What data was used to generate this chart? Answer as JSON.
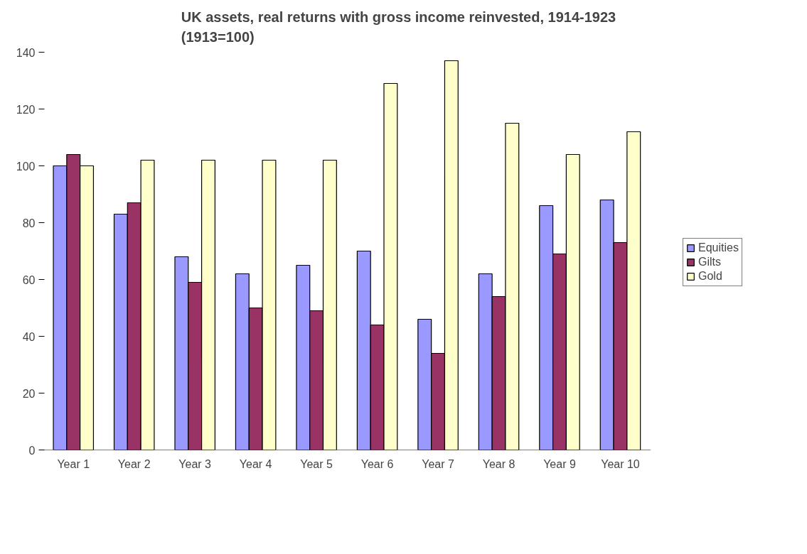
{
  "chart_data": {
    "type": "bar",
    "title": "UK assets, real returns with gross income reinvested, 1914-1923\n(1913=100)",
    "categories": [
      "Year 1",
      "Year 2",
      "Year 3",
      "Year 4",
      "Year 5",
      "Year 6",
      "Year 7",
      "Year 8",
      "Year 9",
      "Year 10"
    ],
    "series": [
      {
        "name": "Equities",
        "color": "#9999ff",
        "values": [
          100,
          83,
          68,
          62,
          65,
          70,
          46,
          62,
          86,
          88
        ]
      },
      {
        "name": "Gilts",
        "color": "#993366",
        "values": [
          104,
          87,
          59,
          50,
          49,
          44,
          34,
          54,
          69,
          73
        ]
      },
      {
        "name": "Gold",
        "color": "#ffffcc",
        "values": [
          100,
          102,
          102,
          102,
          102,
          129,
          137,
          115,
          104,
          112
        ]
      }
    ],
    "ylim": [
      0,
      140
    ],
    "yticks": [
      0,
      20,
      40,
      60,
      80,
      100,
      120,
      140
    ],
    "grid": false,
    "legend": "right"
  }
}
